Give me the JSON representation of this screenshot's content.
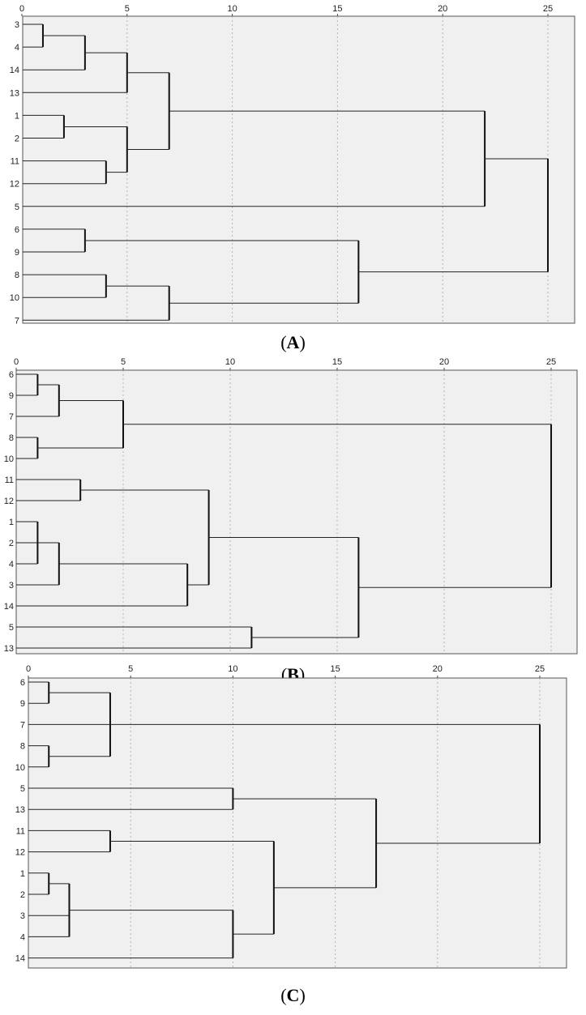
{
  "chart_data": [
    {
      "type": "dendrogram",
      "xlim": [
        0,
        25
      ],
      "xticks": [
        "0",
        "5",
        "10",
        "15",
        "20",
        "25"
      ],
      "grid": true,
      "leaves": [
        "3",
        "4",
        "14",
        "13",
        "1",
        "2",
        "11",
        "12",
        "5",
        "6",
        "9",
        "8",
        "10",
        "7"
      ],
      "merges": [
        {
          "items": [
            "3",
            "4"
          ],
          "height": 1.0
        },
        {
          "items": [
            "1",
            "2"
          ],
          "height": 2.0
        },
        {
          "items": [
            "6",
            "9"
          ],
          "height": 3.0
        },
        {
          "items": [
            "3-4",
            "14"
          ],
          "height": 3.0
        },
        {
          "items": [
            "11",
            "12"
          ],
          "height": 4.0
        },
        {
          "items": [
            "8",
            "10"
          ],
          "height": 4.0
        },
        {
          "items": [
            "3-4-14",
            "13"
          ],
          "height": 5.0
        },
        {
          "items": [
            "1-2",
            "11-12"
          ],
          "height": 5.0
        },
        {
          "items": [
            "8-10",
            "7"
          ],
          "height": 7.0
        },
        {
          "items": [
            "3-4-14-13",
            "1-2-11-12"
          ],
          "height": 7.0
        },
        {
          "items": [
            "6-9",
            "8-10-7"
          ],
          "height": 16.0
        },
        {
          "items": [
            "3..12",
            "5"
          ],
          "height": 22.0
        },
        {
          "items": [
            "3..5",
            "6..7"
          ],
          "height": 25.0
        }
      ],
      "caption": "A"
    },
    {
      "type": "dendrogram",
      "xlim": [
        0,
        25
      ],
      "xticks": [
        "0",
        "5",
        "10",
        "15",
        "20",
        "25"
      ],
      "grid": true,
      "leaves": [
        "6",
        "9",
        "7",
        "8",
        "10",
        "11",
        "12",
        "1",
        "2",
        "4",
        "3",
        "14",
        "5",
        "13"
      ],
      "merges": [
        {
          "items": [
            "6",
            "9"
          ],
          "height": 1.0
        },
        {
          "items": [
            "1",
            "2",
            "4"
          ],
          "height": 1.0
        },
        {
          "items": [
            "8",
            "10"
          ],
          "height": 1.0
        },
        {
          "items": [
            "6-9",
            "7"
          ],
          "height": 2.0
        },
        {
          "items": [
            "1-2-4",
            "3"
          ],
          "height": 2.0
        },
        {
          "items": [
            "11",
            "12"
          ],
          "height": 3.0
        },
        {
          "items": [
            "6-9-7",
            "8-10"
          ],
          "height": 5.0
        },
        {
          "items": [
            "1-2-4-3",
            "14"
          ],
          "height": 8.0
        },
        {
          "items": [
            "11-12",
            "1-2-4-3-14"
          ],
          "height": 9.0
        },
        {
          "items": [
            "5",
            "13"
          ],
          "height": 11.0
        },
        {
          "items": [
            "11..14",
            "5-13"
          ],
          "height": 16.0
        },
        {
          "items": [
            "6..10",
            "11..13"
          ],
          "height": 25.0
        }
      ],
      "caption": "B"
    },
    {
      "type": "dendrogram",
      "xlim": [
        0,
        25
      ],
      "xticks": [
        "0",
        "5",
        "10",
        "15",
        "20",
        "25"
      ],
      "grid": true,
      "leaves": [
        "6",
        "9",
        "7",
        "8",
        "10",
        "5",
        "13",
        "11",
        "12",
        "1",
        "2",
        "3",
        "4",
        "14"
      ],
      "merges": [
        {
          "items": [
            "6",
            "9"
          ],
          "height": 1.0
        },
        {
          "items": [
            "8",
            "10"
          ],
          "height": 1.0
        },
        {
          "items": [
            "1",
            "2"
          ],
          "height": 1.0
        },
        {
          "items": [
            "1-2",
            "3",
            "4"
          ],
          "height": 2.0
        },
        {
          "items": [
            "6-9",
            "7",
            "8-10"
          ],
          "height": 4.0
        },
        {
          "items": [
            "11",
            "12"
          ],
          "height": 4.0
        },
        {
          "items": [
            "5",
            "13"
          ],
          "height": 10.0
        },
        {
          "items": [
            "1-2-3-4",
            "14"
          ],
          "height": 10.0
        },
        {
          "items": [
            "11-12",
            "1..14"
          ],
          "height": 12.0
        },
        {
          "items": [
            "5-13",
            "11..14"
          ],
          "height": 17.0
        },
        {
          "items": [
            "6..10",
            "5..14"
          ],
          "height": 25.0
        }
      ],
      "caption": "C"
    }
  ],
  "captions": {
    "a_open": "(",
    "a_letter": "A",
    "a_close": ")",
    "b_open": "(",
    "b_letter": "B",
    "b_close": ")",
    "c_open": "(",
    "c_letter": "C",
    "c_close": ")"
  }
}
